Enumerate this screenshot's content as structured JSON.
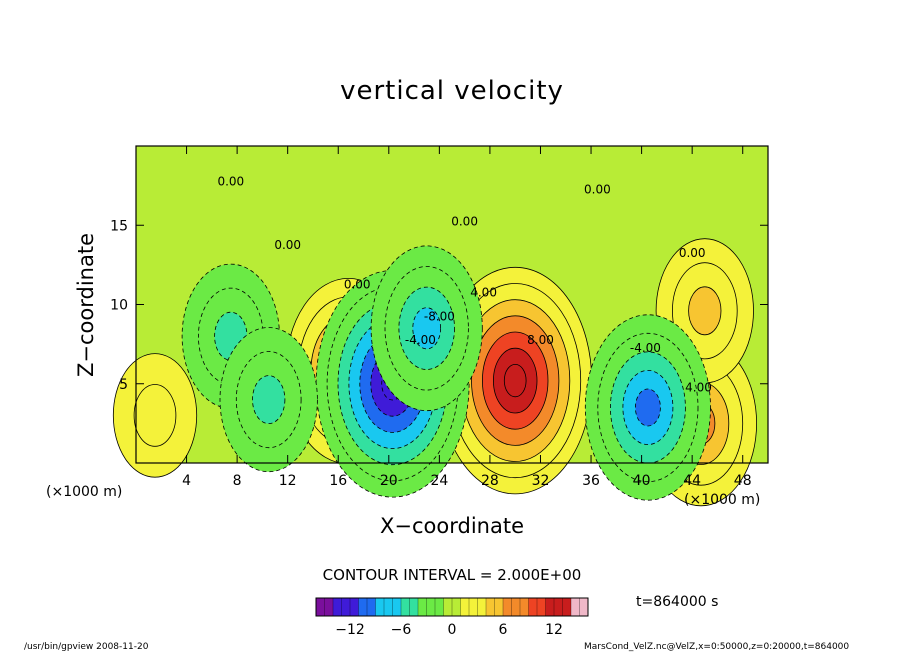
{
  "title": "vertical velocity",
  "xlabel": "X−coordinate",
  "ylabel": "Z−coordinate",
  "x_unit": "(×1000 m)",
  "contour_interval": "CONTOUR INTERVAL = 2.000E+00",
  "time_label": "t=864000 s",
  "footer_left": "/usr/bin/gpview  2008-11-20",
  "footer_right": "MarsCond_VelZ.nc@VelZ,x=0:50000,z=0:20000,t=864000",
  "chart_data": {
    "type": "heatmap",
    "title": "vertical velocity",
    "xlabel": "X−coordinate",
    "ylabel": "Z−coordinate",
    "x_unit": "(×1000 m)",
    "xlim": [
      0,
      50
    ],
    "ylim": [
      0,
      20
    ],
    "x_ticks": [
      4,
      8,
      12,
      16,
      20,
      24,
      28,
      32,
      36,
      40,
      44,
      48
    ],
    "y_ticks": [
      5,
      10,
      15
    ],
    "contour_interval": 2.0,
    "contour_labels": [
      "0.00",
      "0.00",
      "0.00",
      "0.00",
      "0.00",
      "0.00",
      "4.00",
      "8.00",
      "-4.00",
      "4.00",
      "-8.00",
      "-4.00"
    ],
    "colorbar": {
      "range": [
        -16,
        16
      ],
      "ticks": [
        -12,
        -6,
        0,
        6,
        12
      ],
      "colors": [
        "#7a0f9c",
        "#3f1bd8",
        "#1f6bf0",
        "#19c8f0",
        "#33e0a0",
        "#6bea45",
        "#b8ec36",
        "#f4f23a",
        "#f7c531",
        "#f38a2a",
        "#ee4323",
        "#c81d1d",
        "#f0b8c8"
      ]
    },
    "features": [
      {
        "kind": "max",
        "x": 30.0,
        "z": 5.2,
        "value": 14
      },
      {
        "kind": "max",
        "x": 16.8,
        "z": 5.8,
        "value": 10
      },
      {
        "kind": "max",
        "x": 44.7,
        "z": 2.5,
        "value": 8
      },
      {
        "kind": "max",
        "x": 45.0,
        "z": 9.6,
        "value": 6
      },
      {
        "kind": "max",
        "x": 1.5,
        "z": 3.0,
        "value": 4
      },
      {
        "kind": "min",
        "x": 20.3,
        "z": 5.0,
        "value": -14
      },
      {
        "kind": "min",
        "x": 40.5,
        "z": 3.5,
        "value": -10
      },
      {
        "kind": "min",
        "x": 23.0,
        "z": 8.5,
        "value": -8
      },
      {
        "kind": "min",
        "x": 7.5,
        "z": 8.0,
        "value": -6
      },
      {
        "kind": "min",
        "x": 10.5,
        "z": 4.0,
        "value": -6
      }
    ]
  }
}
